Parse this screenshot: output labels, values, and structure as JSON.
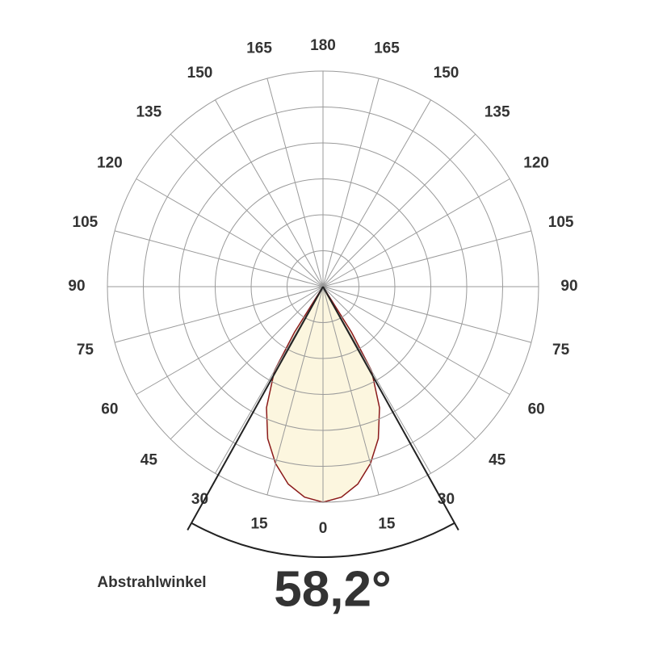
{
  "chart_data": {
    "type": "polar",
    "angle_ticks": [
      0,
      15,
      30,
      45,
      60,
      75,
      90,
      105,
      120,
      135,
      150,
      165,
      180
    ],
    "rlim": [
      0,
      1
    ],
    "rings": 6,
    "x": [
      -34,
      -32,
      -30,
      -25,
      -20,
      -15,
      -10,
      -5,
      0,
      5,
      10,
      15,
      20,
      25,
      30,
      32,
      34
    ],
    "values": [
      0,
      0.25,
      0.45,
      0.62,
      0.75,
      0.85,
      0.93,
      0.98,
      1,
      0.98,
      0.93,
      0.85,
      0.75,
      0.62,
      0.45,
      0.25,
      0
    ],
    "color": "#8b1a1a",
    "fill": "#fcf6df",
    "beam_label": "Abstrahlwinkel",
    "beam_angle": 58.2,
    "beam_angle_label": "58,2°"
  }
}
